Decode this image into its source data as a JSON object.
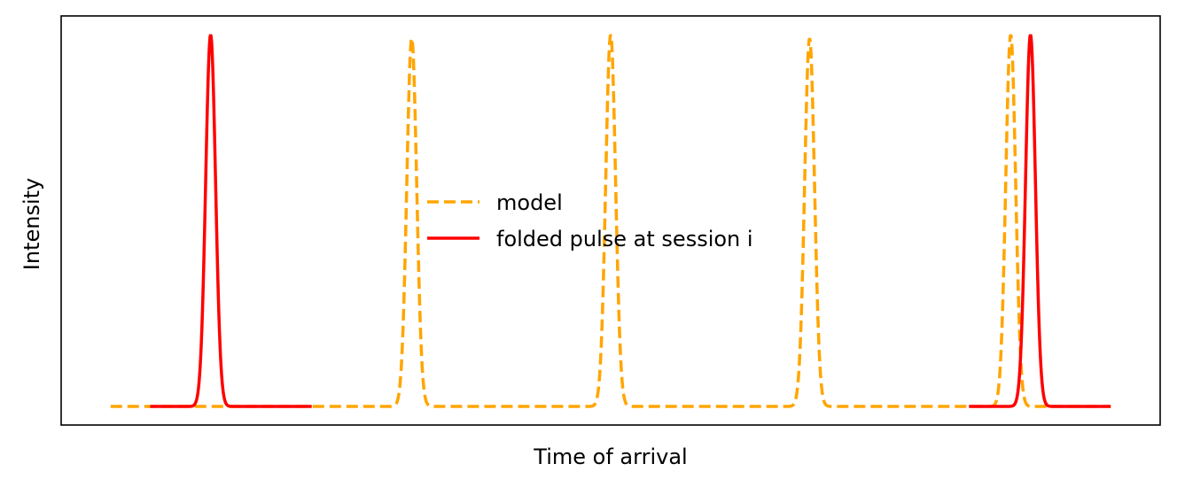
{
  "chart_data": {
    "type": "line",
    "title": "",
    "xlabel": "Time of arrival",
    "ylabel": "Intensity",
    "xlim": [
      0,
      1
    ],
    "ylim": [
      -0.05,
      1.05
    ],
    "xticks": "none",
    "yticks": "none",
    "grid": false,
    "legend_placement": "center",
    "series": [
      {
        "name": "model",
        "color": "#FFA500",
        "style": "dashed",
        "x_range": [
          0.045,
          0.955
        ],
        "peaks": [
          0.319,
          0.5,
          0.681,
          0.864
        ],
        "peak_heights": [
          0.99,
          1.0,
          0.99,
          1.0
        ],
        "sigma": 0.0045
      },
      {
        "name": "folded pulse at session i",
        "color": "#FF0000",
        "style": "solid",
        "segments": [
          {
            "x_range": [
              0.081,
              0.228
            ],
            "peak": 0.136
          },
          {
            "x_range": [
              0.826,
              0.955
            ],
            "peak": 0.882
          }
        ],
        "peak_height": 1.0,
        "sigma": 0.0045
      }
    ]
  }
}
